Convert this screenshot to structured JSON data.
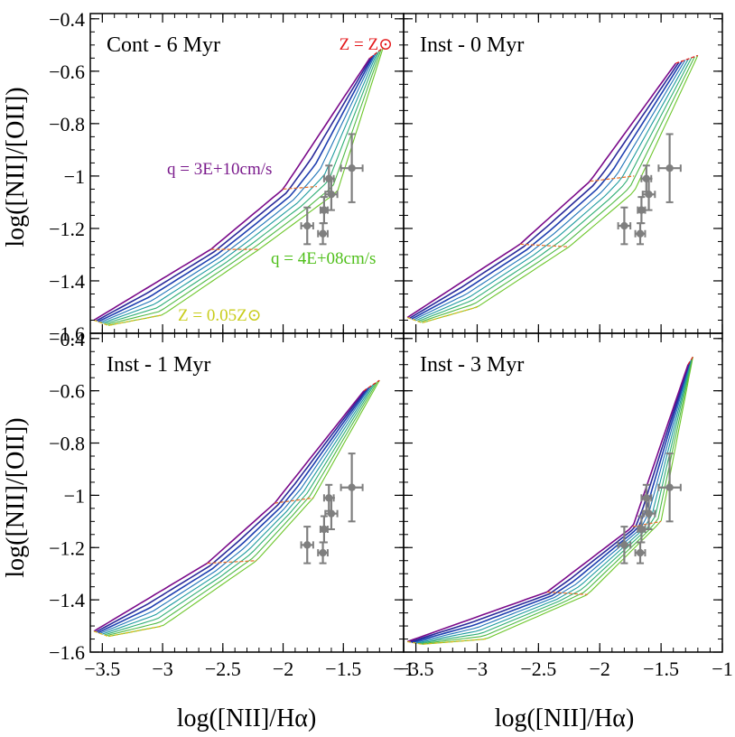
{
  "figure": {
    "ylabel_left": "log([NII]/[OII])",
    "xlabel_bottom": "log([NII]/Hα)"
  },
  "axes": {
    "xlim": [
      -3.6,
      -1.0
    ],
    "ylim": [
      -1.6,
      -0.38
    ],
    "x_ticks": [
      -3.5,
      -3,
      -2.5,
      -2,
      -1.5,
      -1
    ],
    "x_tick_labels": [
      "−3.5",
      "−3",
      "−2.5",
      "−2",
      "−1.5",
      "−1"
    ],
    "y_ticks": [
      -1.6,
      -1.4,
      -1.2,
      -1.0,
      -0.8,
      -0.6,
      -0.4
    ],
    "y_tick_labels": [
      "−1.6",
      "−1.4",
      "−1.2",
      "−1",
      "−0.8",
      "−0.6",
      "−0.4"
    ]
  },
  "colors": {
    "q_lines": [
      "#7a0a8a",
      "#2a2a9a",
      "#1e3fb0",
      "#1f74b8",
      "#1c9a9e",
      "#2fae74",
      "#4fba45",
      "#6cc62a"
    ],
    "z_curves": [
      "#e41a1c",
      "#e8702a",
      "#d7b81a"
    ],
    "data_points": "#7f7f7f",
    "label_q_high": "#7a1a8c",
    "label_q_low": "#4fbf1a",
    "label_z_high": "#e41a1c",
    "label_z_low": "#c8cc1a"
  },
  "panels": [
    {
      "title": "Cont - 6 Myr",
      "annotations": {
        "z_high": "Z = Z⊙",
        "q_high": "q = 3E+10cm/s",
        "q_low": "q = 4E+08cm/s",
        "z_low": "Z = 0.05Z⊙"
      }
    },
    {
      "title": "Inst - 0 Myr"
    },
    {
      "title": "Inst - 1 Myr"
    },
    {
      "title": "Inst - 3 Myr"
    }
  ],
  "chart_data": [
    {
      "type": "line",
      "title": "Cont - 6 Myr",
      "xlabel": "log([NII]/Hα)",
      "ylabel": "log([NII]/[OII])",
      "xlim": [
        -3.6,
        -1.0
      ],
      "ylim": [
        -1.6,
        -0.38
      ],
      "model_grid": {
        "q_top": [
          [
            -3.57,
            -1.55
          ],
          [
            -2.6,
            -1.28
          ],
          [
            -2.0,
            -1.05
          ],
          [
            -1.28,
            -0.55
          ]
        ],
        "q_bottom": [
          [
            -3.45,
            -1.57
          ],
          [
            -3.0,
            -1.53
          ],
          [
            -2.2,
            -1.28
          ],
          [
            -1.55,
            -1.06
          ],
          [
            -1.17,
            -0.51
          ]
        ],
        "z_mid": [
          [
            -2.6,
            -1.28
          ],
          [
            -2.2,
            -1.28
          ]
        ],
        "z_upper": [
          [
            -2.0,
            -1.05
          ],
          [
            -1.72,
            -1.04
          ]
        ],
        "z_top": [
          [
            -1.28,
            -0.55
          ],
          [
            -1.17,
            -0.51
          ]
        ]
      },
      "observations": [
        {
          "x": -1.8,
          "y": -1.19,
          "xerr": 0.05,
          "yerr": 0.07
        },
        {
          "x": -1.67,
          "y": -1.22,
          "xerr": 0.04,
          "yerr": 0.04
        },
        {
          "x": -1.66,
          "y": -1.13,
          "xerr": 0.03,
          "yerr": 0.05
        },
        {
          "x": -1.62,
          "y": -1.01,
          "xerr": 0.04,
          "yerr": 0.05
        },
        {
          "x": -1.6,
          "y": -1.07,
          "xerr": 0.05,
          "yerr": 0.06
        },
        {
          "x": -1.43,
          "y": -0.97,
          "xerr": 0.09,
          "yerr": 0.13
        }
      ]
    },
    {
      "type": "line",
      "title": "Inst - 0 Myr",
      "xlabel": "log([NII]/Hα)",
      "ylabel": "log([NII]/[OII])",
      "xlim": [
        -3.6,
        -1.0
      ],
      "ylim": [
        -1.6,
        -0.38
      ],
      "model_grid": {
        "q_top": [
          [
            -3.57,
            -1.54
          ],
          [
            -2.65,
            -1.26
          ],
          [
            -2.08,
            -1.02
          ],
          [
            -1.38,
            -0.57
          ]
        ],
        "q_bottom": [
          [
            -3.45,
            -1.56
          ],
          [
            -3.0,
            -1.5
          ],
          [
            -2.25,
            -1.27
          ],
          [
            -1.72,
            -1.06
          ],
          [
            -1.2,
            -0.54
          ]
        ],
        "z_mid": [
          [
            -2.65,
            -1.26
          ],
          [
            -2.25,
            -1.27
          ]
        ],
        "z_upper": [
          [
            -2.08,
            -1.02
          ],
          [
            -1.72,
            -1.0
          ]
        ],
        "z_top": [
          [
            -1.38,
            -0.57
          ],
          [
            -1.2,
            -0.54
          ]
        ]
      },
      "observations": [
        {
          "x": -1.8,
          "y": -1.19,
          "xerr": 0.05,
          "yerr": 0.07
        },
        {
          "x": -1.67,
          "y": -1.22,
          "xerr": 0.04,
          "yerr": 0.04
        },
        {
          "x": -1.66,
          "y": -1.13,
          "xerr": 0.03,
          "yerr": 0.05
        },
        {
          "x": -1.62,
          "y": -1.01,
          "xerr": 0.04,
          "yerr": 0.05
        },
        {
          "x": -1.6,
          "y": -1.07,
          "xerr": 0.05,
          "yerr": 0.06
        },
        {
          "x": -1.43,
          "y": -0.97,
          "xerr": 0.09,
          "yerr": 0.13
        }
      ]
    },
    {
      "type": "line",
      "title": "Inst - 1 Myr",
      "xlabel": "log([NII]/Hα)",
      "ylabel": "log([NII]/[OII])",
      "xlim": [
        -3.6,
        -1.0
      ],
      "ylim": [
        -1.6,
        -0.38
      ],
      "model_grid": {
        "q_top": [
          [
            -3.57,
            -1.52
          ],
          [
            -2.63,
            -1.26
          ],
          [
            -2.07,
            -1.03
          ],
          [
            -1.33,
            -0.6
          ]
        ],
        "q_bottom": [
          [
            -3.45,
            -1.54
          ],
          [
            -3.0,
            -1.5
          ],
          [
            -2.22,
            -1.25
          ],
          [
            -1.75,
            -1.01
          ],
          [
            -1.2,
            -0.56
          ]
        ],
        "z_mid": [
          [
            -2.63,
            -1.26
          ],
          [
            -2.22,
            -1.25
          ]
        ],
        "z_upper": [
          [
            -2.07,
            -1.03
          ],
          [
            -1.75,
            -1.01
          ]
        ],
        "z_top": [
          [
            -1.33,
            -0.6
          ],
          [
            -1.2,
            -0.56
          ]
        ]
      },
      "observations": [
        {
          "x": -1.8,
          "y": -1.19,
          "xerr": 0.05,
          "yerr": 0.07
        },
        {
          "x": -1.67,
          "y": -1.22,
          "xerr": 0.04,
          "yerr": 0.04
        },
        {
          "x": -1.66,
          "y": -1.13,
          "xerr": 0.03,
          "yerr": 0.05
        },
        {
          "x": -1.62,
          "y": -1.01,
          "xerr": 0.04,
          "yerr": 0.05
        },
        {
          "x": -1.6,
          "y": -1.07,
          "xerr": 0.05,
          "yerr": 0.06
        },
        {
          "x": -1.43,
          "y": -0.97,
          "xerr": 0.09,
          "yerr": 0.13
        }
      ]
    },
    {
      "type": "line",
      "title": "Inst - 3 Myr",
      "xlabel": "log([NII]/Hα)",
      "ylabel": "log([NII]/[OII])",
      "xlim": [
        -3.6,
        -1.0
      ],
      "ylim": [
        -1.6,
        -0.38
      ],
      "model_grid": {
        "q_top": [
          [
            -3.57,
            -1.56
          ],
          [
            -2.43,
            -1.37
          ],
          [
            -1.73,
            -1.12
          ],
          [
            -1.28,
            -0.5
          ]
        ],
        "q_bottom": [
          [
            -3.45,
            -1.57
          ],
          [
            -2.93,
            -1.55
          ],
          [
            -2.1,
            -1.38
          ],
          [
            -1.5,
            -1.1
          ],
          [
            -1.24,
            -0.47
          ]
        ],
        "z_mid": [
          [
            -2.43,
            -1.37
          ],
          [
            -2.1,
            -1.38
          ]
        ],
        "z_upper": [
          [
            -1.73,
            -1.12
          ],
          [
            -1.5,
            -1.1
          ]
        ],
        "z_top": [
          [
            -1.28,
            -0.5
          ],
          [
            -1.24,
            -0.47
          ]
        ]
      },
      "observations": [
        {
          "x": -1.8,
          "y": -1.19,
          "xerr": 0.05,
          "yerr": 0.07
        },
        {
          "x": -1.67,
          "y": -1.22,
          "xerr": 0.04,
          "yerr": 0.04
        },
        {
          "x": -1.66,
          "y": -1.13,
          "xerr": 0.03,
          "yerr": 0.05
        },
        {
          "x": -1.62,
          "y": -1.01,
          "xerr": 0.04,
          "yerr": 0.05
        },
        {
          "x": -1.6,
          "y": -1.07,
          "xerr": 0.05,
          "yerr": 0.06
        },
        {
          "x": -1.43,
          "y": -0.97,
          "xerr": 0.09,
          "yerr": 0.13
        }
      ]
    }
  ]
}
